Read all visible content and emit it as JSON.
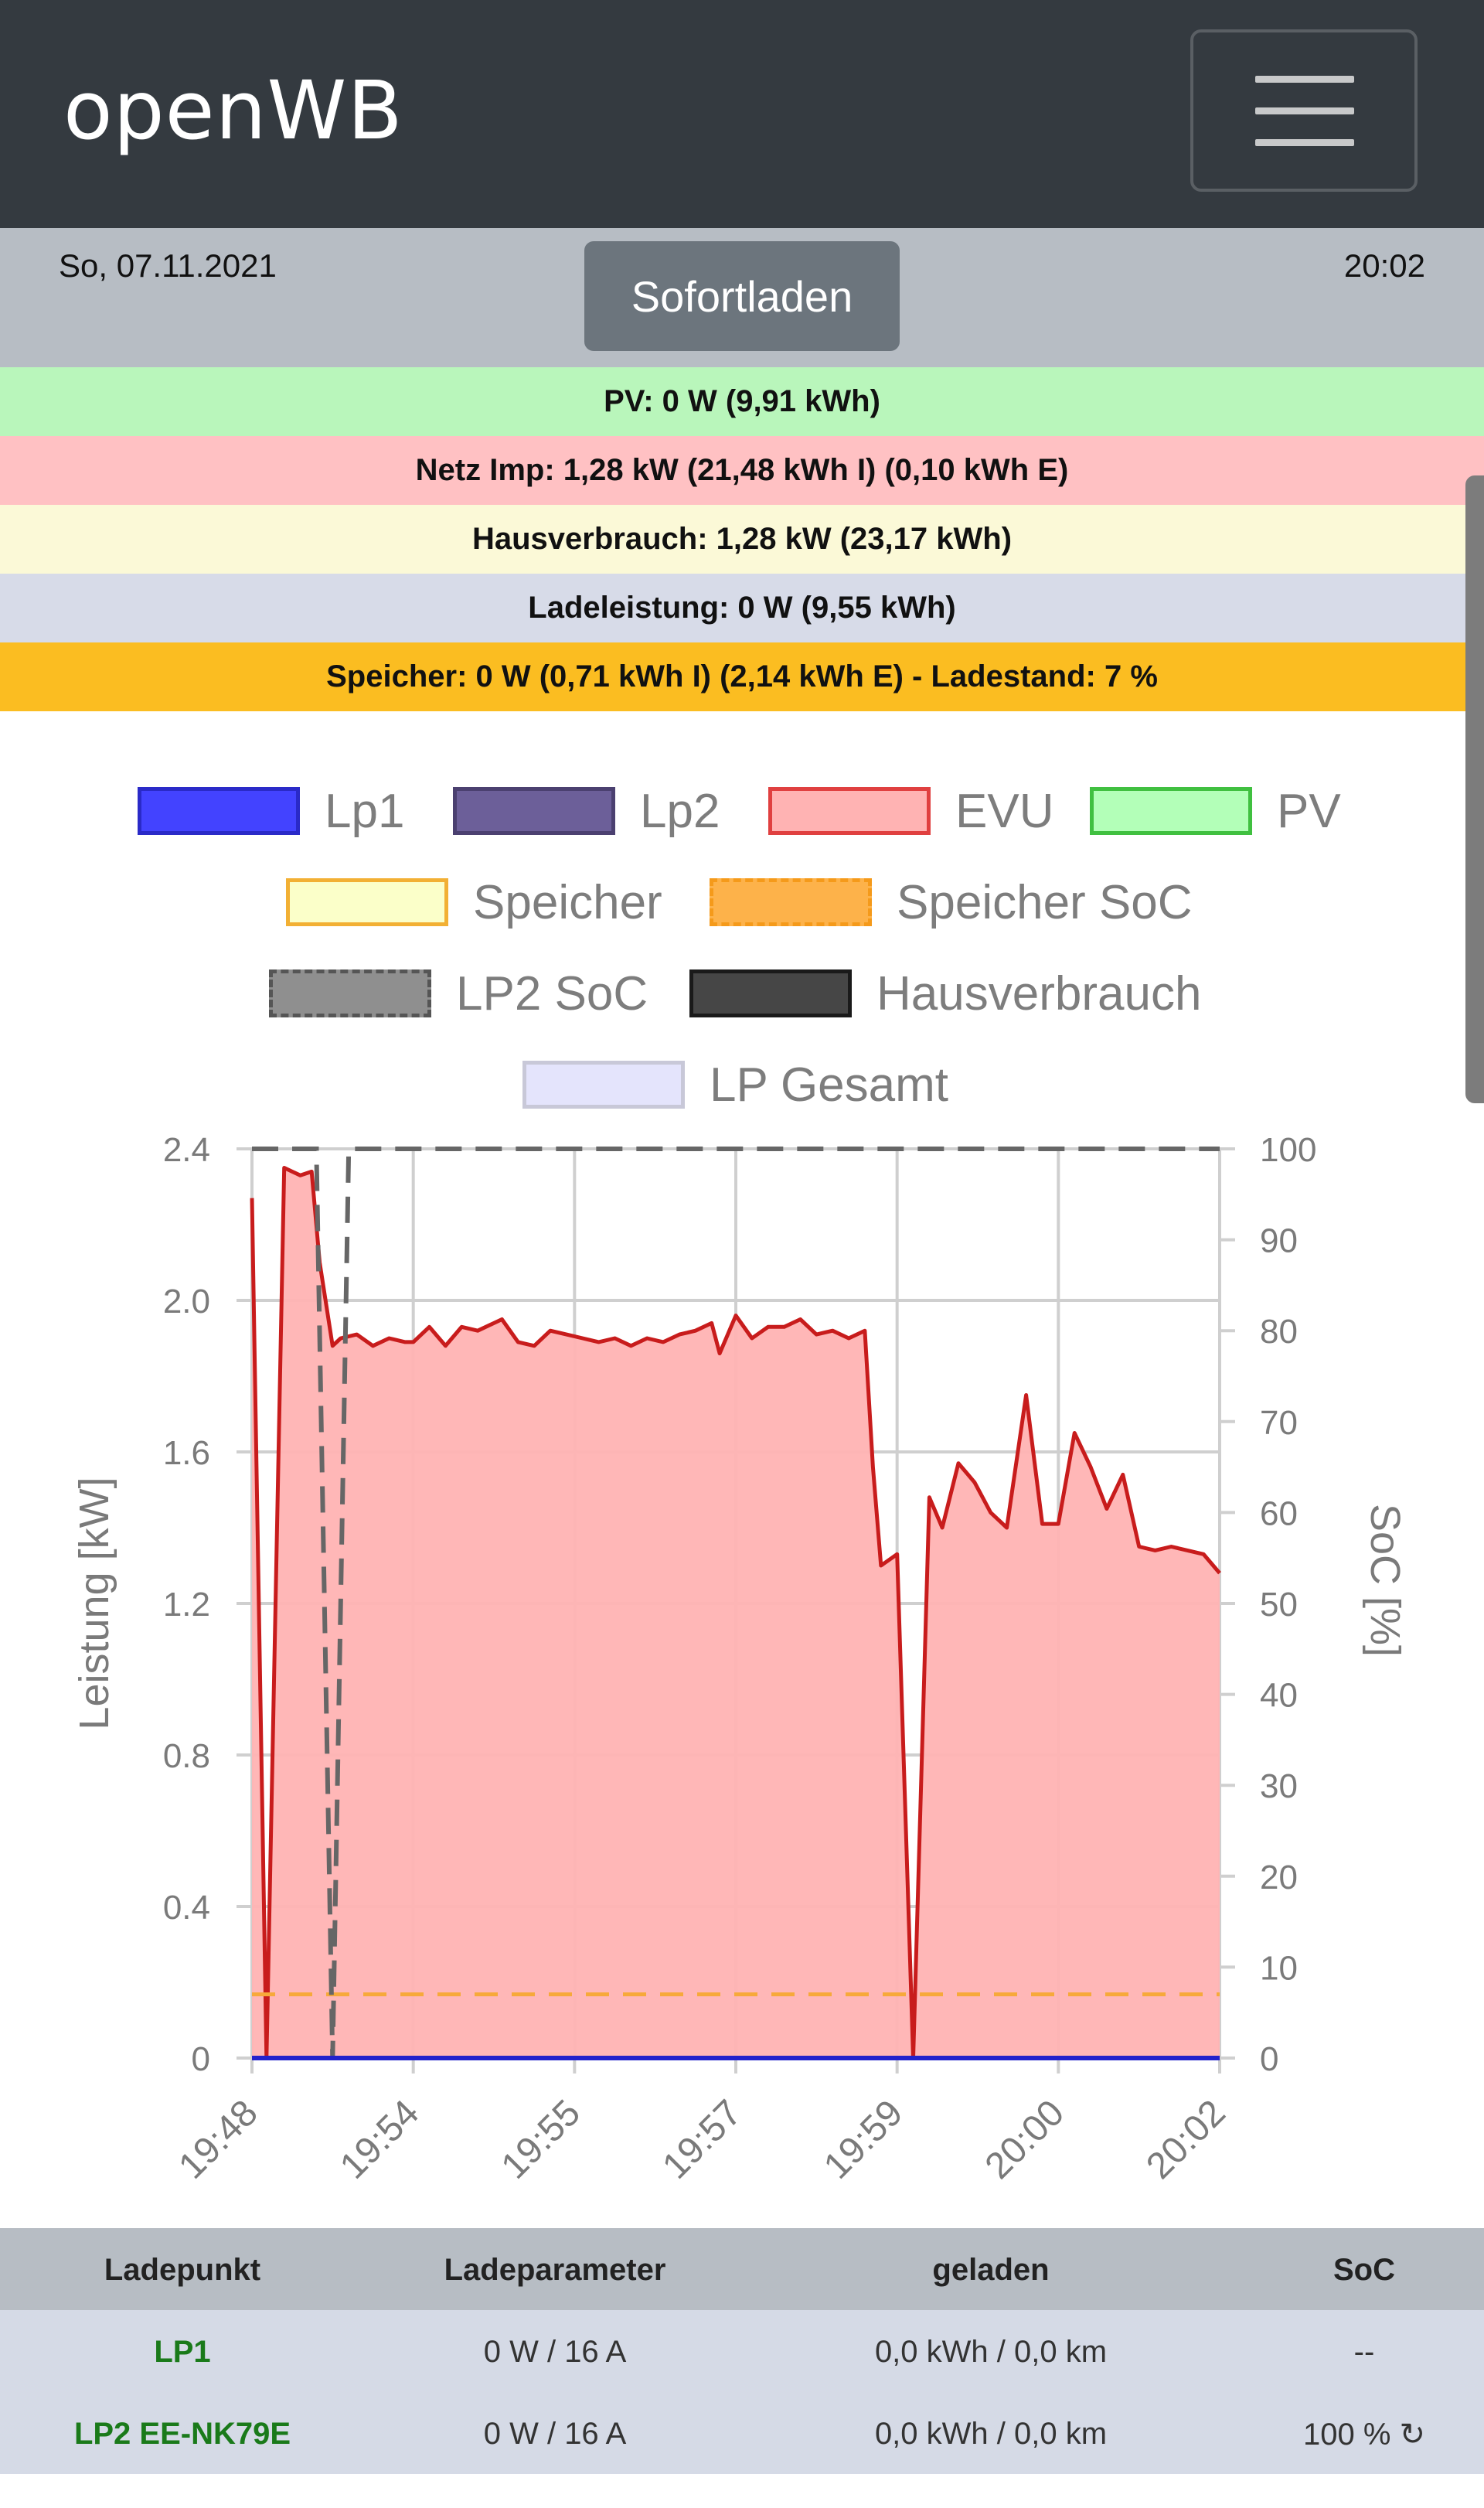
{
  "app": {
    "title": "openWB"
  },
  "status": {
    "date": "So, 07.11.2021",
    "time": "20:02",
    "mode_button": "Sofortladen"
  },
  "strips": [
    {
      "text": "PV: 0 W (9,91 kWh)",
      "color": "#b9f6bb"
    },
    {
      "text": "Netz Imp: 1,28 kW (21,48 kWh I) (0,10 kWh E)",
      "color": "#ffc1c3"
    },
    {
      "text": "Hausverbrauch: 1,28 kW (23,17 kWh)",
      "color": "#fbf9d7"
    },
    {
      "text": "Ladeleistung: 0 W (9,55 kWh)",
      "color": "#d7dbe8"
    },
    {
      "text": "Speicher: 0 W (0,71 kWh I) (2,14 kWh E) - Ladestand: 7 %",
      "color": "#fbbd21"
    }
  ],
  "legend": [
    {
      "label": "Lp1",
      "fill": "#4343ff",
      "border": "#2a2ac8",
      "dashed": false
    },
    {
      "label": "Lp2",
      "fill": "#6c5f99",
      "border": "#4b4070",
      "dashed": false
    },
    {
      "label": "EVU",
      "fill": "#ffb3b3",
      "border": "#e04040",
      "dashed": false
    },
    {
      "label": "PV",
      "fill": "#b3ffb8",
      "border": "#40c040",
      "dashed": false
    },
    {
      "label": "Speicher",
      "fill": "#fbffc9",
      "border": "#f2b034",
      "dashed": false
    },
    {
      "label": "Speicher SoC",
      "fill": "#fdb24a",
      "border": "#f59a1a",
      "dashed": true
    },
    {
      "label": "LP2 SoC",
      "fill": "#8f8f8f",
      "border": "#555555",
      "dashed": true
    },
    {
      "label": "Hausverbrauch",
      "fill": "#464646",
      "border": "#1a1a1a",
      "dashed": false
    },
    {
      "label": "LP Gesamt",
      "fill": "#e4e4fc",
      "border": "#c8c8d8",
      "dashed": false
    }
  ],
  "chart_data": {
    "type": "area",
    "ylabel": "Leistung [kW]",
    "y2label": "SoC [%]",
    "ylim": [
      0,
      2.4
    ],
    "y2lim": [
      0,
      100
    ],
    "yticks": [
      "0",
      "0.4",
      "0.8",
      "1.2",
      "1.6",
      "2.0",
      "2.4"
    ],
    "y2ticks": [
      "0",
      "10",
      "20",
      "30",
      "40",
      "50",
      "60",
      "70",
      "80",
      "90",
      "100"
    ],
    "xticks": [
      "19:48",
      "19:54",
      "19:55",
      "19:57",
      "19:59",
      "20:00",
      "20:02"
    ],
    "grid": true,
    "series": [
      {
        "name": "EVU",
        "color": "#c81c1c",
        "fill": "#ffb3b3",
        "points": [
          [
            0.0,
            2.27
          ],
          [
            0.09,
            0.0
          ],
          [
            0.2,
            2.35
          ],
          [
            0.3,
            2.33
          ],
          [
            0.37,
            2.34
          ],
          [
            0.42,
            2.1
          ],
          [
            0.5,
            1.88
          ],
          [
            0.55,
            1.9
          ],
          [
            0.65,
            1.91
          ],
          [
            0.75,
            1.88
          ],
          [
            0.85,
            1.9
          ],
          [
            0.95,
            1.89
          ],
          [
            1.0,
            1.89
          ],
          [
            1.1,
            1.93
          ],
          [
            1.2,
            1.88
          ],
          [
            1.3,
            1.93
          ],
          [
            1.4,
            1.92
          ],
          [
            1.55,
            1.95
          ],
          [
            1.65,
            1.89
          ],
          [
            1.75,
            1.88
          ],
          [
            1.85,
            1.92
          ],
          [
            1.95,
            1.91
          ],
          [
            2.05,
            1.9
          ],
          [
            2.15,
            1.89
          ],
          [
            2.25,
            1.9
          ],
          [
            2.35,
            1.88
          ],
          [
            2.45,
            1.9
          ],
          [
            2.55,
            1.89
          ],
          [
            2.65,
            1.91
          ],
          [
            2.75,
            1.92
          ],
          [
            2.85,
            1.94
          ],
          [
            2.9,
            1.86
          ],
          [
            3.0,
            1.96
          ],
          [
            3.1,
            1.9
          ],
          [
            3.2,
            1.93
          ],
          [
            3.3,
            1.93
          ],
          [
            3.4,
            1.95
          ],
          [
            3.5,
            1.91
          ],
          [
            3.6,
            1.92
          ],
          [
            3.7,
            1.9
          ],
          [
            3.8,
            1.92
          ],
          [
            3.85,
            1.56
          ],
          [
            3.9,
            1.3
          ],
          [
            4.0,
            1.33
          ],
          [
            4.1,
            0.0
          ],
          [
            4.2,
            1.48
          ],
          [
            4.28,
            1.4
          ],
          [
            4.38,
            1.57
          ],
          [
            4.48,
            1.52
          ],
          [
            4.58,
            1.44
          ],
          [
            4.68,
            1.4
          ],
          [
            4.8,
            1.75
          ],
          [
            4.9,
            1.41
          ],
          [
            5.0,
            1.41
          ],
          [
            5.1,
            1.65
          ],
          [
            5.2,
            1.56
          ],
          [
            5.3,
            1.45
          ],
          [
            5.4,
            1.54
          ],
          [
            5.5,
            1.35
          ],
          [
            5.6,
            1.34
          ],
          [
            5.7,
            1.35
          ],
          [
            5.8,
            1.34
          ],
          [
            5.9,
            1.33
          ],
          [
            6.0,
            1.28
          ]
        ]
      },
      {
        "name": "Lp1",
        "color": "#2222cc",
        "values_kw": 0
      },
      {
        "name": "LP2 SoC",
        "color": "#666666",
        "dashed": true,
        "soc_points": [
          [
            0.0,
            100
          ],
          [
            0.4,
            100
          ],
          [
            0.4,
            99
          ],
          [
            0.5,
            0
          ],
          [
            0.6,
            100
          ],
          [
            6.0,
            100
          ]
        ]
      },
      {
        "name": "Speicher SoC",
        "color": "#f7a93a",
        "dashed": true,
        "soc_value": 7
      }
    ]
  },
  "table": {
    "headers": [
      "Ladepunkt",
      "Ladeparameter",
      "geladen",
      "SoC"
    ],
    "rows": [
      {
        "name": "LP1",
        "param": "0 W / 16 A",
        "charged": "0,0 kWh / 0,0 km",
        "soc": "--"
      },
      {
        "name": "LP2 EE-NK79E",
        "param": "0 W / 16 A",
        "charged": "0,0 kWh / 0,0 km",
        "soc": "100 % ↻"
      }
    ]
  }
}
